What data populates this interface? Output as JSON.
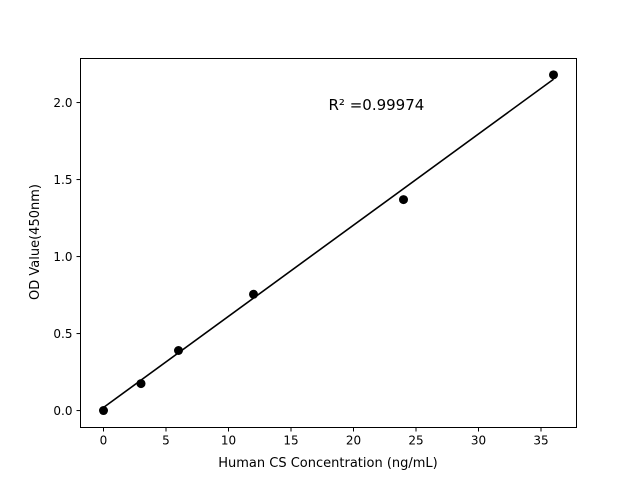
{
  "chart_data": {
    "type": "scatter",
    "title": "",
    "xlabel": "Human CS Concentration (ng/mL)",
    "ylabel": "OD Value(450nm)",
    "xlim": [
      -1.84,
      37.84
    ],
    "ylim": [
      -0.11,
      2.286
    ],
    "xticks": [
      0,
      5,
      10,
      15,
      20,
      25,
      30,
      35
    ],
    "xtick_labels": [
      "0",
      "5",
      "10",
      "15",
      "20",
      "25",
      "30",
      "35"
    ],
    "yticks": [
      0.0,
      0.5,
      1.0,
      1.5,
      2.0
    ],
    "ytick_labels": [
      "0.0",
      "0.5",
      "1.0",
      "1.5",
      "2.0"
    ],
    "grid": false,
    "points": {
      "x": [
        0,
        3,
        6,
        12,
        24,
        36
      ],
      "y": [
        0.0,
        0.175,
        0.39,
        0.755,
        1.37,
        2.18
      ],
      "color": "#000000"
    },
    "fit_line": {
      "slope": 0.0592,
      "intercept": 0.02,
      "x_range": [
        0,
        36
      ],
      "color": "#000000"
    },
    "annotation": {
      "text": "R² =0.99974",
      "x": 18,
      "y": 1.98
    }
  }
}
